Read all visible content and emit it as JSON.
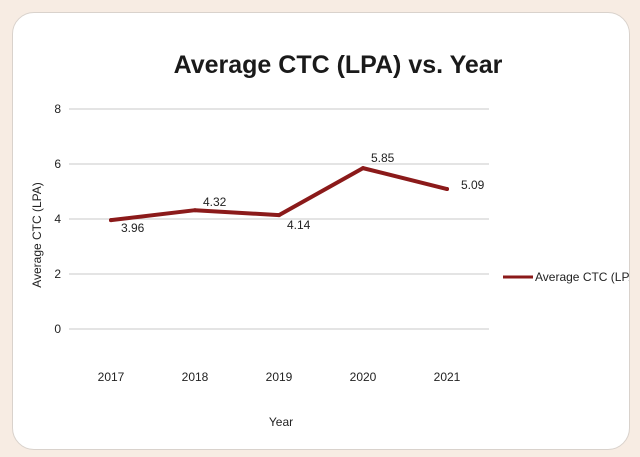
{
  "chart_data": {
    "type": "line",
    "title": "Average CTC (LPA) vs. Year",
    "xlabel": "Year",
    "ylabel": "Average CTC (LPA)",
    "categories": [
      "2017",
      "2018",
      "2019",
      "2020",
      "2021"
    ],
    "series": [
      {
        "name": "Average CTC (LPA)",
        "values": [
          3.96,
          4.32,
          4.14,
          5.85,
          5.09
        ],
        "labels": [
          "3.96",
          "4.32",
          "4.14",
          "5.85",
          "5.09"
        ],
        "color": "#8b1a1a"
      }
    ],
    "ylim": [
      0,
      8
    ],
    "yticks": [
      "0",
      "2",
      "4",
      "6",
      "8"
    ],
    "grid": true,
    "legend_position": "right"
  }
}
